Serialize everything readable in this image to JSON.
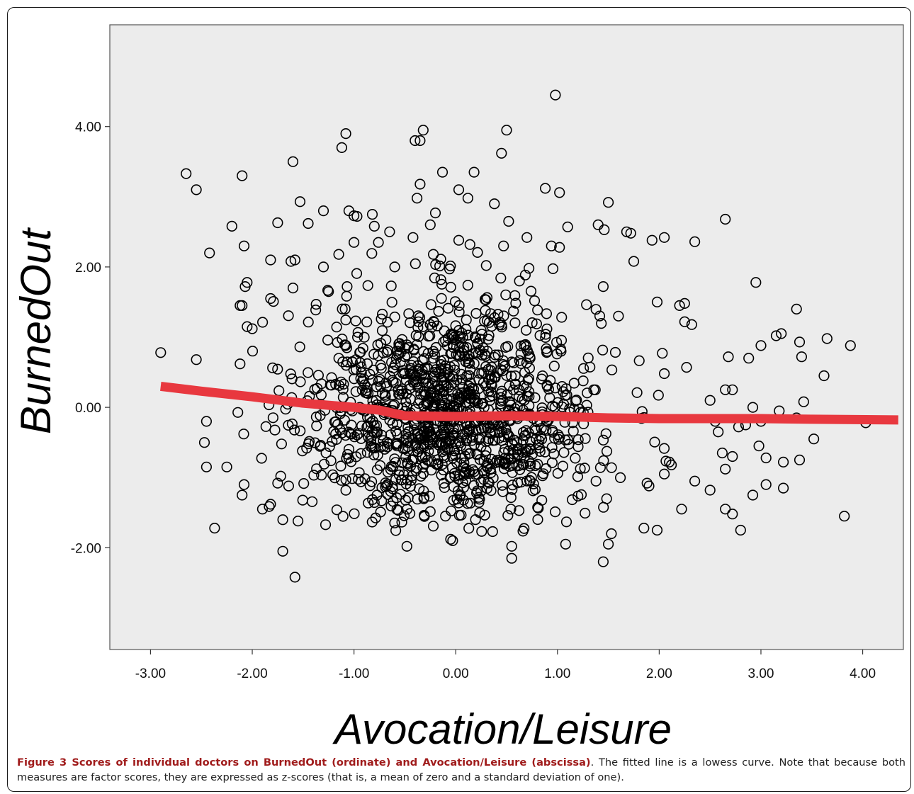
{
  "caption": {
    "lead": "Figure 3 Scores of individual doctors on BurnedOut (ordinate) and Avocation/Leisure (abscissa)",
    "body": ". The fitted line is a lowess curve. Note that because both measures are factor scores, they are expressed as z-scores (that is, a mean of zero and a standard deviation of one)."
  },
  "chart_data": {
    "type": "scatter",
    "xlabel": "Avocation/Leisure",
    "ylabel": "BurnedOut",
    "xlim": [
      -3.4,
      4.4
    ],
    "ylim": [
      -3.45,
      5.45
    ],
    "x_ticks": [
      -3,
      -2,
      -1,
      0,
      1,
      2,
      3,
      4
    ],
    "y_ticks": [
      -2,
      0,
      2,
      4
    ],
    "x_tick_labels": [
      "-3.00",
      "-2.00",
      "-1.00",
      "0.00",
      "1.00",
      "2.00",
      "3.00",
      "4.00"
    ],
    "y_tick_labels": [
      "-2.00",
      "0.00",
      "2.00",
      "4.00"
    ],
    "grid": false,
    "background": "#ececec",
    "marker": "open-circle",
    "fit": {
      "name": "lowess",
      "color": "#e8383f",
      "x": [
        -2.9,
        -2.5,
        -2.0,
        -1.5,
        -1.0,
        -0.75,
        -0.5,
        0.0,
        0.5,
        1.0,
        1.5,
        2.0,
        2.5,
        3.0,
        3.5,
        4.35
      ],
      "y": [
        0.3,
        0.23,
        0.15,
        0.06,
        0.0,
        -0.04,
        -0.12,
        -0.13,
        -0.12,
        -0.13,
        -0.15,
        -0.16,
        -0.16,
        -0.16,
        -0.17,
        -0.18
      ]
    },
    "points": [
      [
        0.98,
        4.45
      ],
      [
        0.5,
        3.95
      ],
      [
        -0.32,
        3.95
      ],
      [
        -1.08,
        3.9
      ],
      [
        -0.4,
        3.8
      ],
      [
        -0.35,
        3.8
      ],
      [
        -1.12,
        3.7
      ],
      [
        0.45,
        3.62
      ],
      [
        -1.6,
        3.5
      ],
      [
        -0.13,
        3.35
      ],
      [
        0.18,
        3.35
      ],
      [
        -2.65,
        3.33
      ],
      [
        -2.1,
        3.3
      ],
      [
        -0.35,
        3.18
      ],
      [
        -2.55,
        3.1
      ],
      [
        0.88,
        3.12
      ],
      [
        0.03,
        3.1
      ],
      [
        1.02,
        3.06
      ],
      [
        -0.38,
        2.98
      ],
      [
        0.12,
        2.98
      ],
      [
        1.5,
        2.92
      ],
      [
        -1.53,
        2.93
      ],
      [
        0.38,
        2.9
      ],
      [
        -1.3,
        2.8
      ],
      [
        -1.05,
        2.8
      ],
      [
        -0.2,
        2.77
      ],
      [
        2.65,
        2.68
      ],
      [
        -1.0,
        2.73
      ],
      [
        -0.97,
        2.72
      ],
      [
        -0.82,
        2.75
      ],
      [
        0.52,
        2.65
      ],
      [
        -1.75,
        2.63
      ],
      [
        -1.45,
        2.62
      ],
      [
        -0.25,
        2.6
      ],
      [
        -2.2,
        2.58
      ],
      [
        -0.8,
        2.58
      ],
      [
        1.1,
        2.57
      ],
      [
        1.4,
        2.6
      ],
      [
        1.46,
        2.53
      ],
      [
        1.72,
        2.48
      ],
      [
        1.68,
        2.5
      ],
      [
        -0.65,
        2.5
      ],
      [
        -0.42,
        2.42
      ],
      [
        0.7,
        2.42
      ],
      [
        2.05,
        2.42
      ],
      [
        0.03,
        2.38
      ],
      [
        1.93,
        2.38
      ],
      [
        -1.0,
        2.35
      ],
      [
        -0.76,
        2.35
      ],
      [
        0.14,
        2.32
      ],
      [
        -2.08,
        2.3
      ],
      [
        0.47,
        2.3
      ],
      [
        0.94,
        2.3
      ],
      [
        1.02,
        2.28
      ],
      [
        2.35,
        2.36
      ],
      [
        -2.42,
        2.2
      ],
      [
        -1.15,
        2.18
      ],
      [
        -0.22,
        2.18
      ],
      [
        -0.6,
        2.0
      ],
      [
        0.3,
        2.02
      ],
      [
        1.75,
        2.08
      ],
      [
        -1.58,
        2.1
      ],
      [
        -1.3,
        2.0
      ],
      [
        -1.62,
        2.08
      ],
      [
        -1.82,
        2.1
      ],
      [
        0.72,
        1.98
      ],
      [
        1.45,
        1.72
      ],
      [
        1.98,
        1.5
      ],
      [
        -1.25,
        1.65
      ],
      [
        -1.6,
        1.7
      ],
      [
        -2.05,
        1.78
      ],
      [
        -2.07,
        1.72
      ],
      [
        -1.82,
        1.55
      ],
      [
        -2.1,
        1.45
      ],
      [
        -2.12,
        1.45
      ],
      [
        2.95,
        1.78
      ],
      [
        3.35,
        1.4
      ],
      [
        2.25,
        1.48
      ],
      [
        2.2,
        1.45
      ],
      [
        1.6,
        1.3
      ],
      [
        2.25,
        1.22
      ],
      [
        2.32,
        1.18
      ],
      [
        -2.05,
        1.15
      ],
      [
        -2.0,
        1.12
      ],
      [
        3.15,
        1.02
      ],
      [
        3.2,
        1.05
      ],
      [
        3.65,
        0.98
      ],
      [
        3.88,
        0.88
      ],
      [
        3.38,
        0.93
      ],
      [
        3.0,
        0.88
      ],
      [
        -2.9,
        0.78
      ],
      [
        2.68,
        0.72
      ],
      [
        2.88,
        0.7
      ],
      [
        3.4,
        0.72
      ],
      [
        -2.55,
        0.68
      ],
      [
        -2.12,
        0.62
      ],
      [
        3.62,
        0.45
      ],
      [
        2.05,
        0.48
      ],
      [
        2.65,
        0.25
      ],
      [
        2.72,
        0.25
      ],
      [
        3.42,
        0.08
      ],
      [
        3.18,
        -0.05
      ],
      [
        2.92,
        0.0
      ],
      [
        3.35,
        -0.15
      ],
      [
        2.5,
        0.1
      ],
      [
        2.55,
        -0.2
      ],
      [
        2.85,
        -0.25
      ],
      [
        2.78,
        -0.28
      ],
      [
        3.0,
        -0.2
      ],
      [
        4.03,
        -0.22
      ],
      [
        -2.45,
        -0.2
      ],
      [
        -2.47,
        -0.5
      ],
      [
        -2.45,
        -0.85
      ],
      [
        -2.25,
        -0.85
      ],
      [
        2.58,
        -0.35
      ],
      [
        2.98,
        -0.55
      ],
      [
        2.62,
        -0.65
      ],
      [
        3.05,
        -0.72
      ],
      [
        3.22,
        -0.78
      ],
      [
        3.52,
        -0.45
      ],
      [
        3.38,
        -0.75
      ],
      [
        2.72,
        -0.7
      ],
      [
        2.65,
        -0.88
      ],
      [
        2.92,
        -1.25
      ],
      [
        3.05,
        -1.1
      ],
      [
        3.22,
        -1.15
      ],
      [
        2.5,
        -1.18
      ],
      [
        2.65,
        -1.45
      ],
      [
        2.72,
        -1.52
      ],
      [
        2.8,
        -1.75
      ],
      [
        3.82,
        -1.55
      ],
      [
        2.35,
        -1.05
      ],
      [
        2.22,
        -1.45
      ],
      [
        -2.37,
        -1.72
      ],
      [
        -1.7,
        -2.05
      ],
      [
        -1.58,
        -2.42
      ],
      [
        0.55,
        -1.98
      ],
      [
        0.55,
        -2.15
      ],
      [
        1.45,
        -2.2
      ],
      [
        1.5,
        -1.95
      ],
      [
        1.53,
        -1.8
      ],
      [
        -0.48,
        -1.98
      ],
      [
        -0.05,
        -1.88
      ],
      [
        -0.03,
        -1.9
      ],
      [
        1.08,
        -1.95
      ],
      [
        1.85,
        -1.72
      ],
      [
        1.98,
        -1.75
      ],
      [
        -2.08,
        -1.1
      ],
      [
        -2.1,
        -1.25
      ],
      [
        -1.9,
        -1.45
      ],
      [
        -1.7,
        -1.6
      ],
      [
        -1.55,
        -1.62
      ],
      [
        -1.82,
        -1.38
      ],
      [
        1.88,
        -1.08
      ],
      [
        1.9,
        -1.12
      ],
      [
        2.05,
        -0.95
      ],
      [
        2.1,
        -0.78
      ],
      [
        2.12,
        -0.82
      ],
      [
        -1.75,
        -1.08
      ],
      [
        -1.72,
        -0.98
      ]
    ],
    "cloud": {
      "count": 1300,
      "x_mean": -0.05,
      "x_sd": 0.72,
      "y_mean": -0.05,
      "y_sd": 0.8,
      "y_min": -1.8,
      "y_max": 2.3
    }
  }
}
